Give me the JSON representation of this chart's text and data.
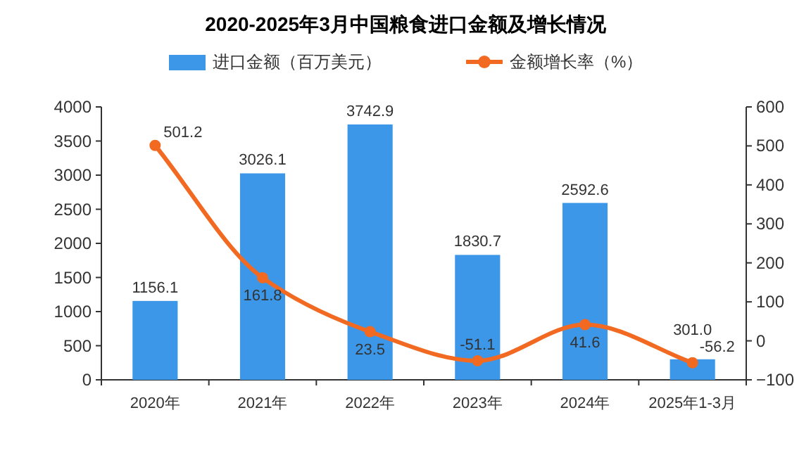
{
  "chart_data": {
    "type": "bar",
    "title": "2020-2025年3月中国粮食进口金额及增长情况",
    "categories": [
      "2020年",
      "2021年",
      "2022年",
      "2023年",
      "2024年",
      "2025年1-3月"
    ],
    "series": [
      {
        "name": "进口金额（百万美元）",
        "color": "#3d97e8",
        "values": [
          1156.1,
          3026.1,
          3742.9,
          1830.7,
          2592.6,
          301
        ],
        "value_labels": [
          "1156.1",
          "3026.1",
          "3742.9",
          "1830.7",
          "2592.6",
          "301.0"
        ]
      },
      {
        "name": "金额增长率（%）",
        "type": "line",
        "axis": "y2",
        "marker": "circle",
        "color": "#f26a21",
        "values": [
          501.2,
          161.8,
          23.5,
          -51.1,
          41.6,
          -56.2
        ]
      }
    ],
    "ylim": [
      0,
      4000
    ],
    "yticks": [
      0,
      500,
      1000,
      1500,
      2000,
      2500,
      3000,
      3500,
      4000
    ],
    "y2lim": [
      -100,
      600
    ],
    "y2ticks": [
      -100,
      0,
      100,
      200,
      300,
      400,
      500,
      600
    ],
    "legend": "top",
    "data_labels": true
  }
}
